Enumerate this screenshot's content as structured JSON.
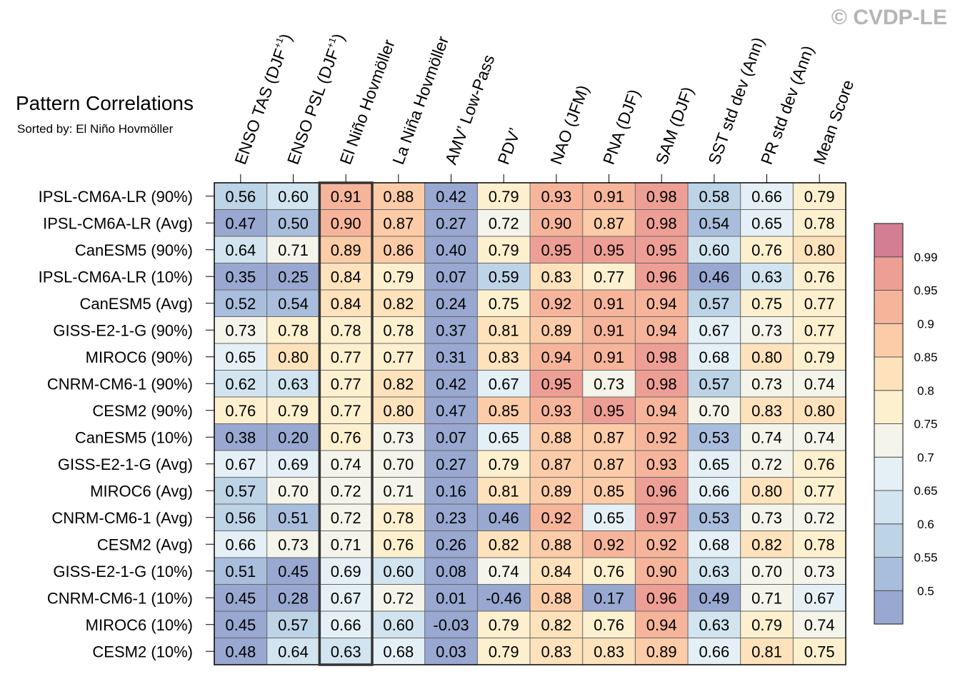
{
  "chart_data": {
    "type": "heatmap",
    "title": "Pattern Correlations",
    "subtitle": "Sorted by: El Niño Hovmöller",
    "watermark": "© CVDP-LE",
    "highlighted_column": "El Niño Hovmöller",
    "columns": [
      {
        "base": "ENSO TAS (DJF",
        "sup": "+1",
        "tail": ")"
      },
      {
        "base": "ENSO PSL (DJF",
        "sup": "+1",
        "tail": ")"
      },
      {
        "base": "El Niño Hovmöller",
        "sup": "",
        "tail": ""
      },
      {
        "base": "La Niña Hovmöller",
        "sup": "",
        "tail": ""
      },
      {
        "base": "AMV’ Low-Pass",
        "sup": "",
        "tail": ""
      },
      {
        "base": "PDV’",
        "sup": "",
        "tail": ""
      },
      {
        "base": "NAO (JFM)",
        "sup": "",
        "tail": ""
      },
      {
        "base": "PNA (DJF)",
        "sup": "",
        "tail": ""
      },
      {
        "base": "SAM (DJF)",
        "sup": "",
        "tail": ""
      },
      {
        "base": "SST std dev (Ann)",
        "sup": "",
        "tail": ""
      },
      {
        "base": "PR std dev (Ann)",
        "sup": "",
        "tail": ""
      },
      {
        "base": "Mean Score",
        "sup": "",
        "tail": ""
      }
    ],
    "rows": [
      "IPSL-CM6A-LR (90%)",
      "IPSL-CM6A-LR (Avg)",
      "CanESM5 (90%)",
      "IPSL-CM6A-LR (10%)",
      "CanESM5 (Avg)",
      "GISS-E2-1-G (90%)",
      "MIROC6 (90%)",
      "CNRM-CM6-1 (90%)",
      "CESM2 (90%)",
      "CanESM5 (10%)",
      "GISS-E2-1-G (Avg)",
      "MIROC6 (Avg)",
      "CNRM-CM6-1 (Avg)",
      "CESM2 (Avg)",
      "GISS-E2-1-G (10%)",
      "CNRM-CM6-1 (10%)",
      "MIROC6 (10%)",
      "CESM2 (10%)"
    ],
    "values": [
      [
        "0.56",
        "0.60",
        "0.91",
        "0.88",
        "0.42",
        "0.79",
        "0.93",
        "0.91",
        "0.98",
        "0.58",
        "0.66",
        "0.79"
      ],
      [
        "0.47",
        "0.50",
        "0.90",
        "0.87",
        "0.27",
        "0.72",
        "0.90",
        "0.87",
        "0.98",
        "0.54",
        "0.65",
        "0.78"
      ],
      [
        "0.64",
        "0.71",
        "0.89",
        "0.86",
        "0.40",
        "0.79",
        "0.95",
        "0.95",
        "0.95",
        "0.60",
        "0.76",
        "0.80"
      ],
      [
        "0.35",
        "0.25",
        "0.84",
        "0.79",
        "0.07",
        "0.59",
        "0.83",
        "0.77",
        "0.96",
        "0.46",
        "0.63",
        "0.76"
      ],
      [
        "0.52",
        "0.54",
        "0.84",
        "0.82",
        "0.24",
        "0.75",
        "0.92",
        "0.91",
        "0.94",
        "0.57",
        "0.75",
        "0.77"
      ],
      [
        "0.73",
        "0.78",
        "0.78",
        "0.78",
        "0.37",
        "0.81",
        "0.89",
        "0.91",
        "0.94",
        "0.67",
        "0.73",
        "0.77"
      ],
      [
        "0.65",
        "0.80",
        "0.77",
        "0.77",
        "0.31",
        "0.83",
        "0.94",
        "0.91",
        "0.98",
        "0.68",
        "0.80",
        "0.79"
      ],
      [
        "0.62",
        "0.63",
        "0.77",
        "0.82",
        "0.42",
        "0.67",
        "0.95",
        "0.73",
        "0.98",
        "0.57",
        "0.73",
        "0.74"
      ],
      [
        "0.76",
        "0.79",
        "0.77",
        "0.80",
        "0.47",
        "0.85",
        "0.93",
        "0.95",
        "0.94",
        "0.70",
        "0.83",
        "0.80"
      ],
      [
        "0.38",
        "0.20",
        "0.76",
        "0.73",
        "0.07",
        "0.65",
        "0.88",
        "0.87",
        "0.92",
        "0.53",
        "0.74",
        "0.74"
      ],
      [
        "0.67",
        "0.69",
        "0.74",
        "0.70",
        "0.27",
        "0.79",
        "0.87",
        "0.87",
        "0.93",
        "0.65",
        "0.72",
        "0.76"
      ],
      [
        "0.57",
        "0.70",
        "0.72",
        "0.71",
        "0.16",
        "0.81",
        "0.89",
        "0.85",
        "0.96",
        "0.66",
        "0.80",
        "0.77"
      ],
      [
        "0.56",
        "0.51",
        "0.72",
        "0.78",
        "0.23",
        "0.46",
        "0.92",
        "0.65",
        "0.97",
        "0.53",
        "0.73",
        "0.72"
      ],
      [
        "0.66",
        "0.73",
        "0.71",
        "0.76",
        "0.26",
        "0.82",
        "0.88",
        "0.92",
        "0.92",
        "0.68",
        "0.82",
        "0.78"
      ],
      [
        "0.51",
        "0.45",
        "0.69",
        "0.60",
        "0.08",
        "0.74",
        "0.84",
        "0.76",
        "0.90",
        "0.63",
        "0.70",
        "0.73"
      ],
      [
        "0.45",
        "0.28",
        "0.67",
        "0.72",
        "0.01",
        "-0.46",
        "0.88",
        "0.17",
        "0.96",
        "0.49",
        "0.71",
        "0.67"
      ],
      [
        "0.45",
        "0.57",
        "0.66",
        "0.60",
        "-0.03",
        "0.79",
        "0.82",
        "0.76",
        "0.94",
        "0.63",
        "0.79",
        "0.74"
      ],
      [
        "0.48",
        "0.64",
        "0.63",
        "0.68",
        "0.03",
        "0.79",
        "0.83",
        "0.83",
        "0.89",
        "0.66",
        "0.81",
        "0.75"
      ]
    ],
    "colorbar": {
      "levels": [
        0.5,
        0.55,
        0.6,
        0.65,
        0.7,
        0.75,
        0.8,
        0.85,
        0.9,
        0.95,
        0.99
      ],
      "labels": [
        "0.5",
        "0.55",
        "0.6",
        "0.65",
        "0.7",
        "0.75",
        "0.8",
        "0.85",
        "0.9",
        "0.95",
        "0.99"
      ],
      "colors": [
        "#98a8d0",
        "#a9bedc",
        "#bdd3e6",
        "#d1e4ef",
        "#e4f0f5",
        "#f4f4ea",
        "#fdf0cf",
        "#fde2bb",
        "#fbcca7",
        "#f6b59b",
        "#ee9f95",
        "#d47e93"
      ]
    }
  }
}
